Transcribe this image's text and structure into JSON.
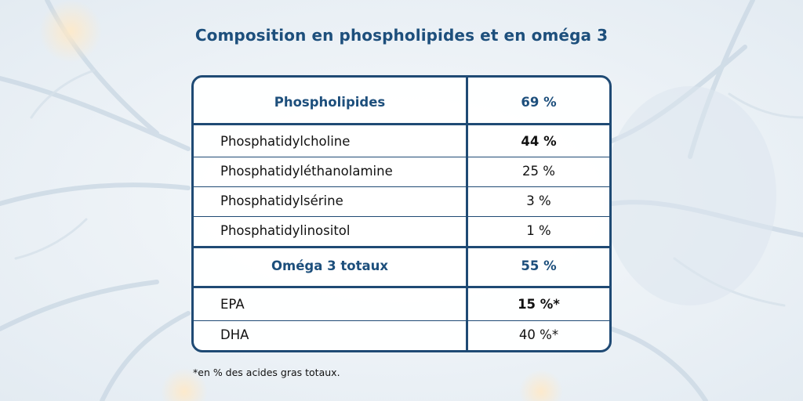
{
  "title": "Composition en phospholipides et en oméga 3",
  "table": {
    "section1": {
      "label": "Phospholipides",
      "value": "69 %"
    },
    "rows1": [
      {
        "label": "Phosphatidylcholine",
        "value": "44 %"
      },
      {
        "label": "Phosphatidyléthanolamine",
        "value": "25 %"
      },
      {
        "label": "Phosphatidylsérine",
        "value": "3 %"
      },
      {
        "label": "Phosphatidylinositol",
        "value": "1 %"
      }
    ],
    "section2": {
      "label": "Oméga 3 totaux",
      "value": "55 %"
    },
    "rows2": [
      {
        "label": "EPA",
        "value": "15 %*"
      },
      {
        "label": "DHA",
        "value": "40 %*"
      }
    ]
  },
  "footnote": "*en % des acides gras totaux.",
  "colors": {
    "accent": "#1d4f7c",
    "border": "#1f4a74",
    "text": "#111111"
  },
  "background": "neuron-image"
}
